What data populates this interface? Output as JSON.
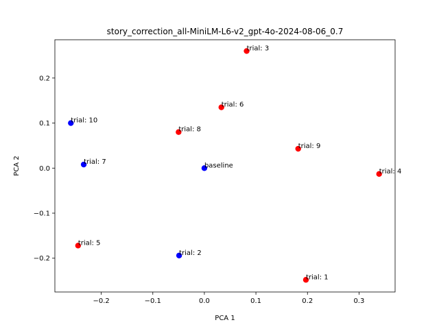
{
  "chart_data": {
    "type": "scatter",
    "title": "story_correction_all-MiniLM-L6-v2_gpt-4o-2024-08-06_0.7",
    "xlabel": "PCA 1",
    "ylabel": "PCA 2",
    "xlim": [
      -0.29,
      0.37
    ],
    "ylim": [
      -0.275,
      0.285
    ],
    "xticks": [
      -0.2,
      -0.1,
      0.0,
      0.1,
      0.2,
      0.3
    ],
    "xtick_labels": [
      "−0.2",
      "−0.1",
      "0.0",
      "0.1",
      "0.2",
      "0.3"
    ],
    "yticks": [
      -0.2,
      -0.1,
      0.0,
      0.1,
      0.2
    ],
    "ytick_labels": [
      "−0.2",
      "−0.1",
      "0.0",
      "0.1",
      "0.2"
    ],
    "grid": false,
    "colors": {
      "red": "#ff0000",
      "blue": "#0000ff"
    },
    "points": [
      {
        "label": "baseline",
        "x": 0.0,
        "y": 0.0,
        "color": "blue"
      },
      {
        "label": "trial: 1",
        "x": 0.197,
        "y": -0.248,
        "color": "red"
      },
      {
        "label": "trial: 2",
        "x": -0.049,
        "y": -0.194,
        "color": "blue"
      },
      {
        "label": "trial: 3",
        "x": 0.082,
        "y": 0.26,
        "color": "red"
      },
      {
        "label": "trial: 4",
        "x": 0.339,
        "y": -0.013,
        "color": "red"
      },
      {
        "label": "trial: 5",
        "x": -0.245,
        "y": -0.172,
        "color": "red"
      },
      {
        "label": "trial: 6",
        "x": 0.033,
        "y": 0.135,
        "color": "red"
      },
      {
        "label": "trial: 7",
        "x": -0.234,
        "y": 0.008,
        "color": "blue"
      },
      {
        "label": "trial: 8",
        "x": -0.05,
        "y": 0.08,
        "color": "red"
      },
      {
        "label": "trial: 9",
        "x": 0.182,
        "y": 0.043,
        "color": "red"
      },
      {
        "label": "trial: 10",
        "x": -0.259,
        "y": 0.1,
        "color": "blue"
      }
    ]
  }
}
